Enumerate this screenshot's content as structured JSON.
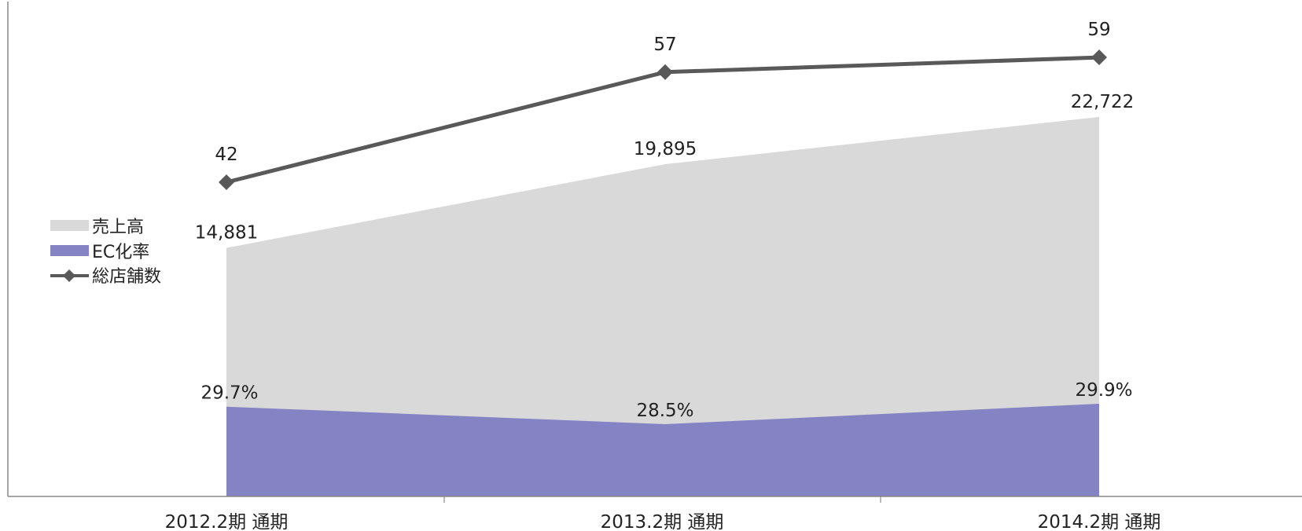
{
  "colors": {
    "sales_area": "#d9d9d9",
    "ec_area": "#8484c5",
    "stores_line": "#595959",
    "axis": "#888888",
    "text": "#222222"
  },
  "chart_data": {
    "type": "area",
    "categories": [
      "2012.2期 通期",
      "2013.2期 通期",
      "2014.2期 通期"
    ],
    "series": [
      {
        "name": "売上高",
        "type": "area",
        "values": [
          14881,
          19895,
          22722
        ],
        "labels": [
          "14,881",
          "19,895",
          "22,722"
        ]
      },
      {
        "name": "EC化率",
        "type": "area",
        "values": [
          29.7,
          28.5,
          29.9
        ],
        "labels": [
          "29.7%",
          "28.5%",
          "29.9%"
        ]
      },
      {
        "name": "総店舗数",
        "type": "line",
        "marker": "diamond",
        "values": [
          42,
          57,
          59
        ],
        "labels": [
          "42",
          "57",
          "59"
        ]
      }
    ],
    "legend": {
      "position": "left",
      "entries": [
        "売上高",
        "EC化率",
        "総店舗数"
      ]
    },
    "grid": false,
    "data_labels": true
  }
}
